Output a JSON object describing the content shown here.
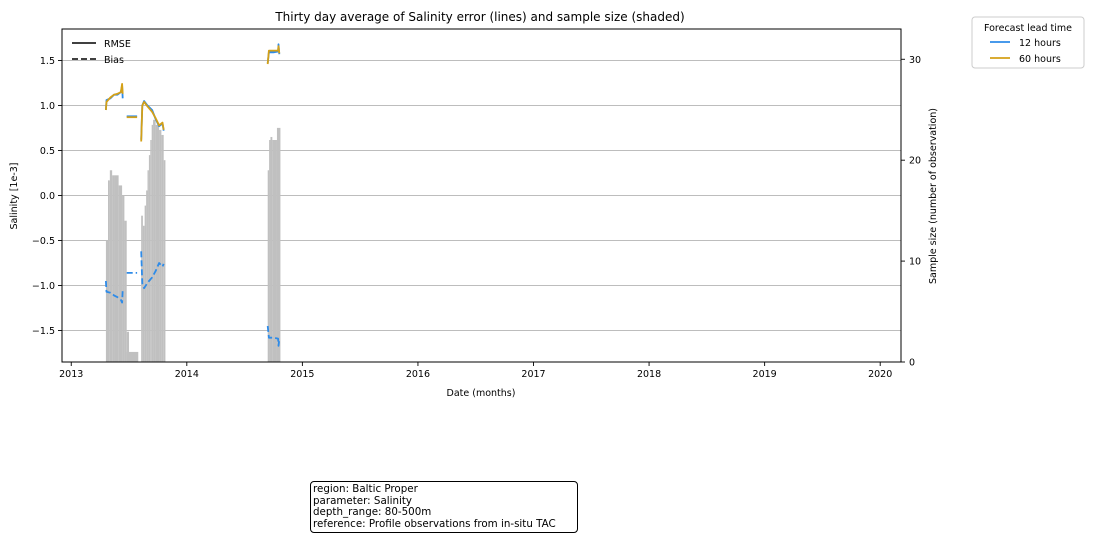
{
  "chart_data": {
    "type": "line",
    "title": "Thirty day average of Salinity error (lines) and sample size (shaded)",
    "xlabel": "Date (months)",
    "ylabel": "Salinity [1e-3]",
    "y2label": "Sample size (number of observation)",
    "xlim": [
      2012.92,
      2020.18
    ],
    "ylim": [
      -1.85,
      1.85
    ],
    "y2lim": [
      0,
      33
    ],
    "x_ticks": [
      "2013",
      "2014",
      "2015",
      "2016",
      "2017",
      "2018",
      "2019",
      "2020"
    ],
    "x_tick_values": [
      2013,
      2014,
      2015,
      2016,
      2017,
      2018,
      2019,
      2020
    ],
    "y_ticks": [
      "−1.5",
      "−1.0",
      "−0.5",
      "0.0",
      "0.5",
      "1.0",
      "1.5"
    ],
    "y_tick_values": [
      -1.5,
      -1.0,
      -0.5,
      0.0,
      0.5,
      1.0,
      1.5
    ],
    "y2_ticks": [
      "0",
      "10",
      "20",
      "30"
    ],
    "y2_tick_values": [
      0,
      10,
      20,
      30
    ],
    "grid": "horizontal",
    "style_legend": {
      "placement": "top-left",
      "entries": [
        {
          "label": "RMSE",
          "style": "solid"
        },
        {
          "label": "Bias",
          "style": "dashed"
        }
      ]
    },
    "lead_legend": {
      "title": "Forecast lead time",
      "placement": "outside-top-right",
      "entries": [
        {
          "label": "12 hours",
          "color": "#2e8be8"
        },
        {
          "label": "60 hours",
          "color": "#d4a017"
        }
      ]
    },
    "sample_size": {
      "color": "#c0c0c0",
      "bars": [
        {
          "x": [
            2013.3,
            2013.318
          ],
          "n": 12
        },
        {
          "x": [
            2013.318,
            2013.334
          ],
          "n": 18
        },
        {
          "x": [
            2013.334,
            2013.354
          ],
          "n": 19
        },
        {
          "x": [
            2013.354,
            2013.374
          ],
          "n": 18.5
        },
        {
          "x": [
            2013.374,
            2013.41
          ],
          "n": 18.5
        },
        {
          "x": [
            2013.41,
            2013.44
          ],
          "n": 17.5
        },
        {
          "x": [
            2013.44,
            2013.46
          ],
          "n": 16.5
        },
        {
          "x": [
            2013.46,
            2013.48
          ],
          "n": 14
        },
        {
          "x": [
            2013.48,
            2013.5
          ],
          "n": 3
        },
        {
          "x": [
            2013.48,
            2013.58
          ],
          "n": 1
        },
        {
          "x": [
            2013.605,
            2013.62
          ],
          "n": 14.5
        },
        {
          "x": [
            2013.62,
            2013.635
          ],
          "n": 13.5
        },
        {
          "x": [
            2013.635,
            2013.648
          ],
          "n": 15.5
        },
        {
          "x": [
            2013.648,
            2013.66
          ],
          "n": 17
        },
        {
          "x": [
            2013.66,
            2013.672
          ],
          "n": 19
        },
        {
          "x": [
            2013.672,
            2013.684
          ],
          "n": 20.5
        },
        {
          "x": [
            2013.684,
            2013.696
          ],
          "n": 22
        },
        {
          "x": [
            2013.696,
            2013.708
          ],
          "n": 23.5
        },
        {
          "x": [
            2013.708,
            2013.73
          ],
          "n": 24
        },
        {
          "x": [
            2013.73,
            2013.76
          ],
          "n": 23.5
        },
        {
          "x": [
            2013.76,
            2013.78
          ],
          "n": 23
        },
        {
          "x": [
            2013.78,
            2013.8
          ],
          "n": 22.5
        },
        {
          "x": [
            2013.8,
            2013.815
          ],
          "n": 20
        },
        {
          "x": [
            2014.7,
            2014.712
          ],
          "n": 19
        },
        {
          "x": [
            2014.712,
            2014.724
          ],
          "n": 22
        },
        {
          "x": [
            2014.724,
            2014.74
          ],
          "n": 22.3
        },
        {
          "x": [
            2014.74,
            2014.78
          ],
          "n": 22
        },
        {
          "x": [
            2014.78,
            2014.81
          ],
          "n": 23.2
        }
      ]
    },
    "series": [
      {
        "name": "12 hours",
        "metric": "RMSE",
        "color": "#2e8be8",
        "segments": [
          [
            [
              2013.3,
              0.95
            ],
            [
              2013.305,
              1.06
            ],
            [
              2013.34,
              1.08
            ],
            [
              2013.37,
              1.12
            ],
            [
              2013.4,
              1.12
            ],
            [
              2013.43,
              1.15
            ],
            [
              2013.44,
              1.22
            ],
            [
              2013.445,
              1.08
            ]
          ],
          [
            [
              2013.48,
              0.88
            ],
            [
              2013.57,
              0.88
            ]
          ],
          [
            [
              2013.605,
              0.62
            ],
            [
              2013.615,
              1.0
            ],
            [
              2013.63,
              1.05
            ],
            [
              2013.66,
              1.0
            ],
            [
              2013.7,
              0.95
            ],
            [
              2013.73,
              0.85
            ],
            [
              2013.76,
              0.77
            ],
            [
              2013.79,
              0.8
            ],
            [
              2013.8,
              0.72
            ]
          ],
          [
            [
              2014.7,
              1.47
            ],
            [
              2014.71,
              1.59
            ],
            [
              2014.75,
              1.59
            ],
            [
              2014.79,
              1.6
            ],
            [
              2014.793,
              1.68
            ],
            [
              2014.8,
              1.57
            ]
          ]
        ]
      },
      {
        "name": "60 hours",
        "metric": "RMSE",
        "color": "#d4a017",
        "segments": [
          [
            [
              2013.3,
              0.95
            ],
            [
              2013.305,
              1.04
            ],
            [
              2013.34,
              1.09
            ],
            [
              2013.37,
              1.12
            ],
            [
              2013.4,
              1.13
            ],
            [
              2013.43,
              1.15
            ],
            [
              2013.44,
              1.24
            ],
            [
              2013.445,
              1.13
            ]
          ],
          [
            [
              2013.48,
              0.87
            ],
            [
              2013.57,
              0.87
            ]
          ],
          [
            [
              2013.605,
              0.6
            ],
            [
              2013.615,
              1.0
            ],
            [
              2013.63,
              1.04
            ],
            [
              2013.66,
              0.99
            ],
            [
              2013.7,
              0.93
            ],
            [
              2013.73,
              0.86
            ],
            [
              2013.76,
              0.78
            ],
            [
              2013.79,
              0.81
            ],
            [
              2013.8,
              0.73
            ]
          ],
          [
            [
              2014.7,
              1.46
            ],
            [
              2014.71,
              1.61
            ],
            [
              2014.75,
              1.61
            ],
            [
              2014.79,
              1.61
            ],
            [
              2014.793,
              1.66
            ],
            [
              2014.8,
              1.58
            ]
          ]
        ]
      },
      {
        "name": "12 hours",
        "metric": "Bias",
        "color": "#2e8be8",
        "segments": [
          [
            [
              2013.3,
              -0.95
            ],
            [
              2013.305,
              -1.07
            ],
            [
              2013.34,
              -1.08
            ],
            [
              2013.37,
              -1.11
            ],
            [
              2013.4,
              -1.13
            ],
            [
              2013.43,
              -1.16
            ],
            [
              2013.44,
              -1.19
            ],
            [
              2013.445,
              -1.05
            ]
          ],
          [
            [
              2013.48,
              -0.86
            ],
            [
              2013.57,
              -0.86
            ]
          ],
          [
            [
              2013.605,
              -0.62
            ],
            [
              2013.615,
              -0.98
            ],
            [
              2013.63,
              -1.03
            ],
            [
              2013.66,
              -0.97
            ],
            [
              2013.7,
              -0.91
            ],
            [
              2013.73,
              -0.84
            ],
            [
              2013.76,
              -0.75
            ],
            [
              2013.79,
              -0.79
            ],
            [
              2013.8,
              -0.76
            ]
          ],
          [
            [
              2014.7,
              -1.45
            ],
            [
              2014.71,
              -1.58
            ],
            [
              2014.75,
              -1.58
            ],
            [
              2014.79,
              -1.59
            ],
            [
              2014.793,
              -1.67
            ],
            [
              2014.8,
              -1.6
            ]
          ]
        ]
      }
    ]
  },
  "info_box": {
    "region": "region: Baltic Proper",
    "parameter": "parameter: Salinity",
    "depth_range": "depth_range: 80-500m",
    "reference": "reference: Profile observations from in-situ TAC"
  }
}
